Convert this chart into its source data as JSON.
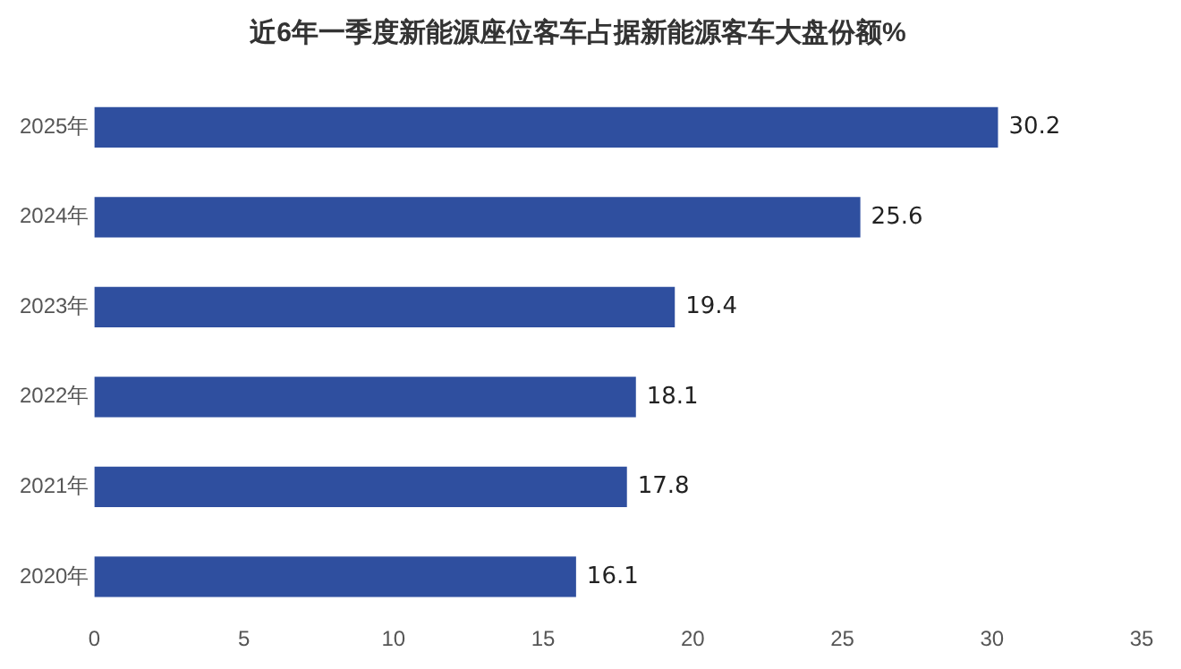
{
  "chart_data": {
    "type": "bar",
    "orientation": "horizontal",
    "title": "近6年一季度新能源座位客车占据新能源客车大盘份额%",
    "categories": [
      "2025年",
      "2024年",
      "2023年",
      "2022年",
      "2021年",
      "2020年"
    ],
    "values": [
      30.2,
      25.6,
      19.4,
      18.1,
      17.8,
      16.1
    ],
    "color": "#2f4f9f",
    "xlim": [
      0,
      35
    ],
    "xticks": [
      0,
      5,
      10,
      15,
      20,
      25,
      30,
      35
    ],
    "grid": false,
    "data_labels": true
  }
}
